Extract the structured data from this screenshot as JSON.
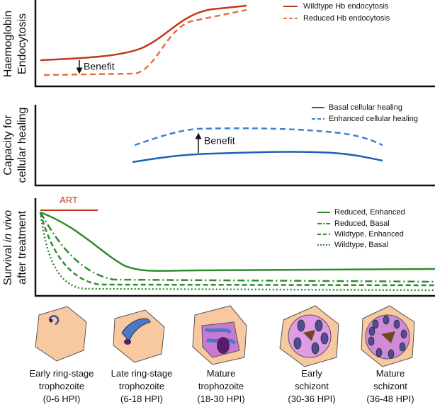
{
  "panels": [
    {
      "y_label": [
        "Haemoglobin",
        "Endocytosis"
      ],
      "legend": [
        "Wildtype Hb endocytosis",
        "Reduced Hb endocytosis"
      ],
      "annotation": "Benefit"
    },
    {
      "y_label": [
        "Capacity for",
        "cellular healing"
      ],
      "legend": [
        "Basal cellular healing",
        "Enhanced cellular healing"
      ],
      "annotation": "Benefit"
    },
    {
      "y_label": [
        [
          "Survival",
          "in vivo"
        ],
        "after treatment"
      ],
      "legend": [
        "Reduced, Enhanced",
        "Reduced, Basal",
        "Wildtype, Enhanced",
        "Wildtype, Basal"
      ],
      "annotation": "ART"
    }
  ],
  "stages": [
    [
      "Early ring-stage",
      "trophozoite",
      "(0-6 HPI)"
    ],
    [
      "Late ring-stage",
      "trophozoite",
      "(6-18 HPI)"
    ],
    [
      "Mature",
      "trophozoite",
      "(18-30 HPI)"
    ],
    [
      "Early",
      "schizont",
      "(30-36 HPI)"
    ],
    [
      "Mature",
      "schizont",
      "(36-48 HPI)"
    ]
  ]
}
